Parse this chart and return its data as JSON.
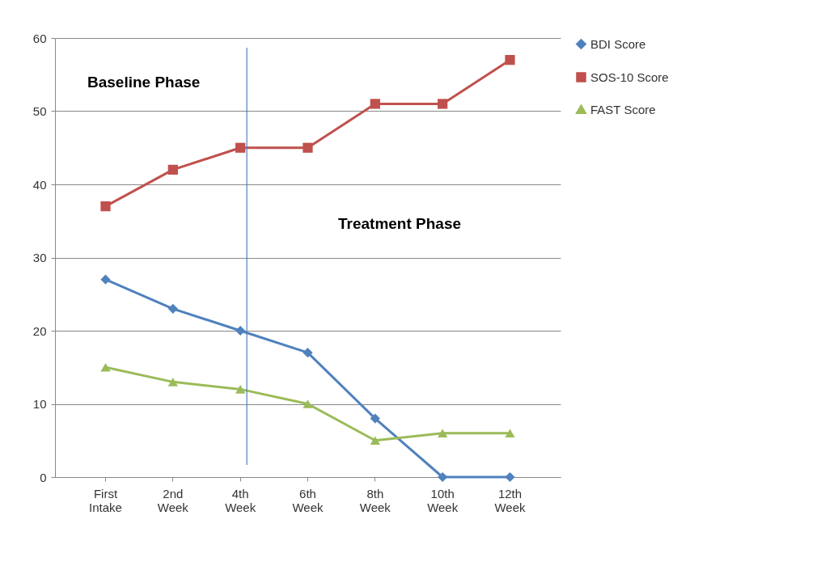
{
  "chart_data": {
    "type": "line",
    "categories": [
      "First Intake",
      "2nd Week",
      "4th Week",
      "6th Week",
      "8th Week",
      "10th Week",
      "12th Week"
    ],
    "series": [
      {
        "name": "BDI Score",
        "color": "#4f81bd",
        "marker": "diamond",
        "values": [
          27,
          23,
          20,
          17,
          8,
          0,
          0
        ]
      },
      {
        "name": "SOS-10 Score",
        "color": "#c0504d",
        "marker": "square",
        "values": [
          37,
          42,
          45,
          45,
          51,
          51,
          57
        ]
      },
      {
        "name": "FAST Score",
        "color": "#9bbb59",
        "marker": "triangle",
        "values": [
          15,
          13,
          12,
          10,
          5,
          6,
          6
        ]
      }
    ],
    "ylim": [
      0,
      60
    ],
    "yticks": [
      0,
      10,
      20,
      30,
      40,
      50,
      60
    ],
    "grid": "y",
    "legend": "right",
    "ref_lines": [
      {
        "axis": "x",
        "value": "4th Week",
        "color": "#4f81bd"
      }
    ],
    "annotations": [
      "Baseline Phase",
      "Treatment Phase"
    ]
  }
}
